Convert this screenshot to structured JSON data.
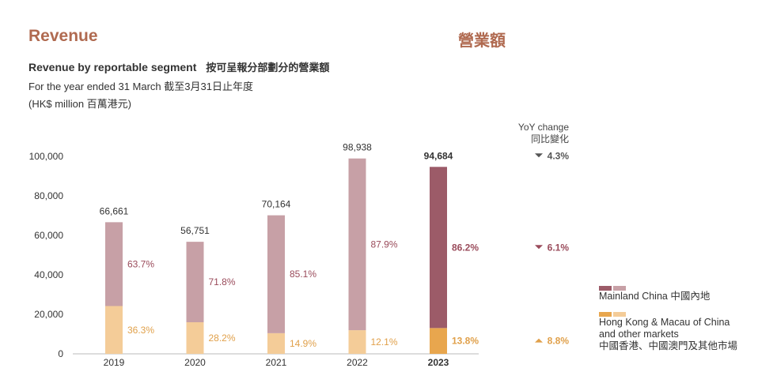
{
  "header": {
    "title_en": "Revenue",
    "title_zh": "營業額",
    "subtitle_en": "Revenue by reportable segment",
    "subtitle_zh": "按可呈報分部劃分的營業額",
    "period": "For the year ended 31 March 截至3月31日止年度",
    "unit": "(HK$ million 百萬港元)"
  },
  "yoy_header": {
    "line1": "YoY change",
    "line2": "同比變化"
  },
  "colors": {
    "mainland_light": "#c7a0a6",
    "mainland_dark": "#9c5b68",
    "hk_light": "#f4cc98",
    "hk_dark": "#e8a64e",
    "pct_mainland": "#9a4b5b",
    "pct_hk": "#e0a04a",
    "axis_text": "#333333",
    "grid": "#dddddd"
  },
  "legend": {
    "mainland": "Mainland China 中國內地",
    "hk_line1": "Hong Kong & Macau of China",
    "hk_line2": "and other markets",
    "hk_line3": "中國香港、中國澳門及其他市場"
  },
  "chart_data": {
    "type": "bar",
    "stacked": true,
    "categories": [
      "2019",
      "2020",
      "2021",
      "2022",
      "2023"
    ],
    "highlight_category": "2023",
    "ylim": [
      0,
      100000
    ],
    "yticks": [
      0,
      20000,
      40000,
      60000,
      80000,
      100000
    ],
    "ytick_labels": [
      "0",
      "20,000",
      "40,000",
      "60,000",
      "80,000",
      "100,000"
    ],
    "totals": [
      66661,
      56751,
      70164,
      98938,
      94684
    ],
    "total_labels": [
      "66,661",
      "56,751",
      "70,164",
      "98,938",
      "94,684"
    ],
    "series": [
      {
        "name": "Hong Kong & Macau of China and other markets",
        "share_pct": [
          36.3,
          28.2,
          14.9,
          12.1,
          13.8
        ],
        "pct_labels": [
          "36.3%",
          "28.2%",
          "14.9%",
          "12.1%",
          "13.8%"
        ]
      },
      {
        "name": "Mainland China",
        "share_pct": [
          63.7,
          71.8,
          85.1,
          87.9,
          86.2
        ],
        "pct_labels": [
          "63.7%",
          "71.8%",
          "85.1%",
          "87.9%",
          "86.2%"
        ]
      }
    ],
    "yoy_change": [
      {
        "label": "4.3%",
        "direction": "down",
        "value": -4.3,
        "ref": "total"
      },
      {
        "label": "6.1%",
        "direction": "down",
        "value": -6.1,
        "ref": "mainland"
      },
      {
        "label": "8.8%",
        "direction": "up",
        "value": 8.8,
        "ref": "hk"
      }
    ]
  }
}
